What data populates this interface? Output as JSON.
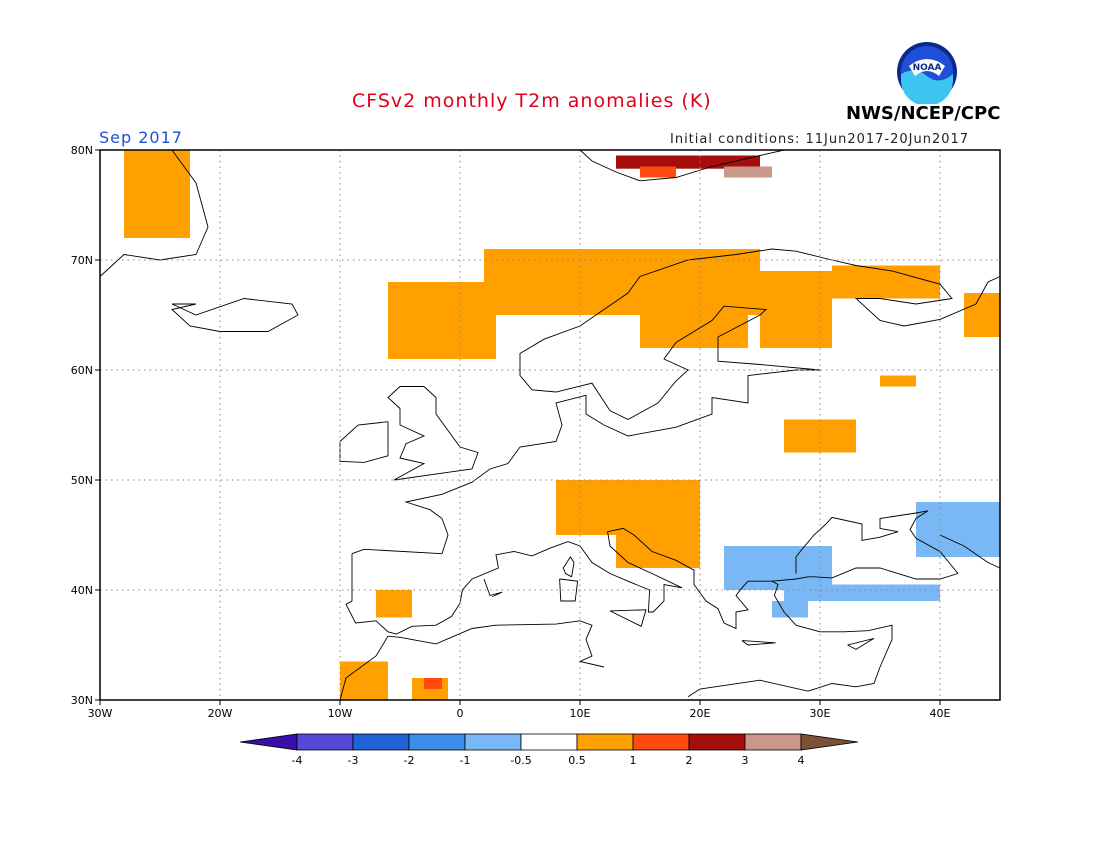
{
  "title": "CFSv2 monthly T2m anomalies (K)",
  "valid_month": "Sep 2017",
  "initial_conditions": "Initial conditions: 11Jun2017-20Jun2017",
  "agency": "NWS/NCEP/CPC",
  "logo_text": "NOAA",
  "map": {
    "lon_range": [
      -30,
      45
    ],
    "lat_range": [
      30,
      80
    ],
    "lon_ticks": [
      {
        "value": -30,
        "label": "30W"
      },
      {
        "value": -20,
        "label": "20W"
      },
      {
        "value": -10,
        "label": "10W"
      },
      {
        "value": 0,
        "label": "0"
      },
      {
        "value": 10,
        "label": "10E"
      },
      {
        "value": 20,
        "label": "20E"
      },
      {
        "value": 30,
        "label": "30E"
      },
      {
        "value": 40,
        "label": "40E"
      }
    ],
    "lat_ticks": [
      {
        "value": 80,
        "label": "80N"
      },
      {
        "value": 70,
        "label": "70N"
      },
      {
        "value": 60,
        "label": "60N"
      },
      {
        "value": 50,
        "label": "50N"
      },
      {
        "value": 40,
        "label": "40N"
      },
      {
        "value": 30,
        "label": "30N"
      }
    ],
    "anomaly_regions": [
      {
        "level": "0.5-1",
        "lon": [
          -28,
          -22.5
        ],
        "lat": [
          72,
          80
        ]
      },
      {
        "level": "0.5-1",
        "lon": [
          -6,
          3
        ],
        "lat": [
          61,
          68
        ]
      },
      {
        "level": "0.5-1",
        "lon": [
          2,
          25
        ],
        "lat": [
          65,
          71
        ]
      },
      {
        "level": "0.5-1",
        "lon": [
          15,
          24
        ],
        "lat": [
          62,
          67
        ]
      },
      {
        "level": "0.5-1",
        "lon": [
          25,
          31
        ],
        "lat": [
          62,
          69
        ]
      },
      {
        "level": "0.5-1",
        "lon": [
          31,
          40
        ],
        "lat": [
          66.5,
          69.5
        ]
      },
      {
        "level": "0.5-1",
        "lon": [
          42,
          45
        ],
        "lat": [
          63,
          67
        ]
      },
      {
        "level": "0.5-1",
        "lon": [
          35,
          38
        ],
        "lat": [
          58.5,
          59.5
        ]
      },
      {
        "level": "0.5-1",
        "lon": [
          27,
          33
        ],
        "lat": [
          52.5,
          55.5
        ]
      },
      {
        "level": "0.5-1",
        "lon": [
          8,
          20
        ],
        "lat": [
          45,
          50
        ]
      },
      {
        "level": "0.5-1",
        "lon": [
          13,
          20
        ],
        "lat": [
          42,
          46
        ]
      },
      {
        "level": "0.5-1",
        "lon": [
          -7,
          -4
        ],
        "lat": [
          37.5,
          40
        ]
      },
      {
        "level": "0.5-1",
        "lon": [
          -10,
          -6
        ],
        "lat": [
          30,
          33.5
        ]
      },
      {
        "level": "0.5-1",
        "lon": [
          -4,
          -1
        ],
        "lat": [
          30,
          32
        ]
      },
      {
        "level": "1-2",
        "lon": [
          -3,
          -1.5
        ],
        "lat": [
          31,
          32
        ]
      },
      {
        "level": "2-3",
        "lon": [
          13,
          25
        ],
        "lat": [
          78.3,
          79.5
        ]
      },
      {
        "level": "1-2",
        "lon": [
          15,
          18
        ],
        "lat": [
          77.5,
          78.5
        ]
      },
      {
        "level": "3-4",
        "lon": [
          22,
          26
        ],
        "lat": [
          77.5,
          78.5
        ]
      },
      {
        "level": "-1--0.5",
        "lon": [
          38,
          45
        ],
        "lat": [
          43,
          48
        ]
      },
      {
        "level": "-1--0.5",
        "lon": [
          22,
          31
        ],
        "lat": [
          40,
          44
        ]
      },
      {
        "level": "-1--0.5",
        "lon": [
          27,
          40
        ],
        "lat": [
          39,
          40.5
        ]
      },
      {
        "level": "-1--0.5",
        "lon": [
          26,
          29
        ],
        "lat": [
          37.5,
          39
        ]
      }
    ]
  },
  "colorbar": {
    "colors": [
      "#3a0ea8",
      "#5547d8",
      "#1f63d6",
      "#3a8ee8",
      "#7ab8f5",
      "#ffffff",
      "#ffa000",
      "#ff4a10",
      "#a60e0e",
      "#c9988a",
      "#7a5238"
    ],
    "tick_labels": [
      "-4",
      "-3",
      "-2",
      "-1",
      "-0.5",
      "0.5",
      "1",
      "2",
      "3",
      "4"
    ]
  }
}
